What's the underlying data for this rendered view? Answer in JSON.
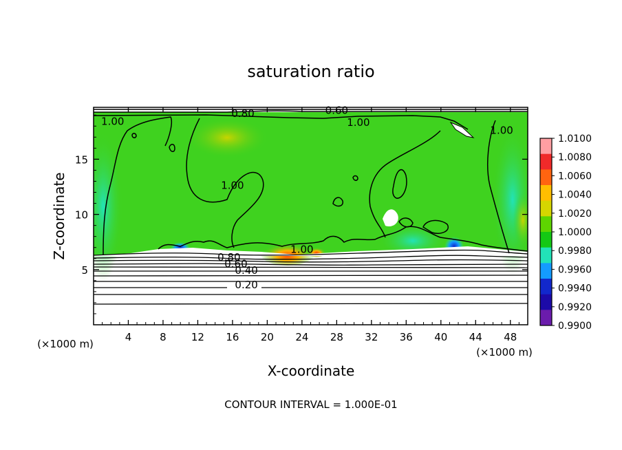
{
  "chart_data": {
    "type": "heatmap",
    "title": "saturation ratio",
    "xlabel": "X-coordinate",
    "ylabel": "Z-coordinate",
    "x_unit_left": "(×1000 m)",
    "x_unit_right": "(×1000 m)",
    "xlim": [
      0,
      50
    ],
    "ylim": [
      0,
      19.7
    ],
    "x_ticks": [
      4,
      8,
      12,
      16,
      20,
      24,
      28,
      32,
      36,
      40,
      44,
      48
    ],
    "y_ticks": [
      5,
      10,
      15
    ],
    "footer": "CONTOUR INTERVAL = 1.000E-01",
    "colorbar": {
      "labels": [
        "1.0100",
        "1.0080",
        "1.0060",
        "1.0040",
        "1.0020",
        "1.0000",
        "0.9980",
        "0.9960",
        "0.9940",
        "0.9920",
        "0.9900"
      ],
      "colors": [
        "#ff9ea2",
        "#f02a2a",
        "#ff6410",
        "#ffbe00",
        "#d6d600",
        "#5ed500",
        "#14c814",
        "#22e3b8",
        "#149bff",
        "#1228cc",
        "#1c0aa8",
        "#6b1cac"
      ]
    },
    "contour_labels": [
      {
        "text": "1.00",
        "x": 2.2,
        "y": 18.3
      },
      {
        "text": "0.80",
        "x": 17.2,
        "y": 19.0
      },
      {
        "text": "0.60",
        "x": 28.0,
        "y": 19.3
      },
      {
        "text": "1.00",
        "x": 30.5,
        "y": 18.2
      },
      {
        "text": "1.00",
        "x": 47.0,
        "y": 17.5
      },
      {
        "text": "1.00",
        "x": 16.0,
        "y": 12.5
      },
      {
        "text": "1.00",
        "x": 24.0,
        "y": 6.7
      },
      {
        "text": "0.80",
        "x": 15.6,
        "y": 6.0
      },
      {
        "text": "0.60",
        "x": 16.4,
        "y": 5.4
      },
      {
        "text": "0.40",
        "x": 17.6,
        "y": 4.8
      },
      {
        "text": "0.20",
        "x": 17.6,
        "y": 3.5
      }
    ]
  }
}
